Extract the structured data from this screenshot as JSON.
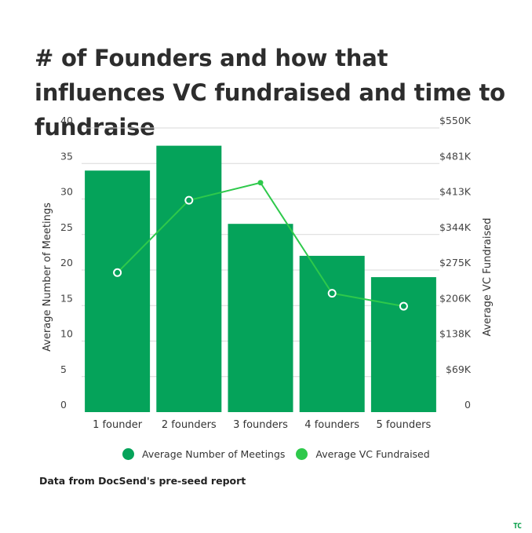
{
  "colors": {
    "bar": "#05a35a",
    "line": "#2ec94b",
    "grid": "#d9d9d9"
  },
  "chart_data": {
    "type": "bar",
    "title": "# of Founders and how that influences VC fundraised and time to fundraise",
    "categories": [
      "1 founder",
      "2 founders",
      "3 founders",
      "4 founders",
      "5 founders"
    ],
    "series": [
      {
        "name": "Average Number of Meetings",
        "type": "bar",
        "axis": "left",
        "values": [
          34,
          37.5,
          26.5,
          22,
          19
        ]
      },
      {
        "name": "Average VC Fundraised",
        "type": "line",
        "axis": "right",
        "values": [
          270,
          410,
          444,
          230,
          205
        ]
      }
    ],
    "ylabel_left": "Average Number of Meetings",
    "ylabel_right": "Average VC Fundraised",
    "ylim_left": [
      0,
      40
    ],
    "ylim_right": [
      0,
      550
    ],
    "yticks_left": [
      "0",
      "5",
      "10",
      "15",
      "20",
      "25",
      "30",
      "35",
      "40"
    ],
    "yticks_right": [
      "0",
      "$69K",
      "$138K",
      "$206K",
      "$275K",
      "$344K",
      "$413K",
      "$481K",
      "$550K"
    ],
    "grid": true,
    "legend_position": "bottom"
  },
  "source_note": "Data from DocSend's pre-seed report",
  "logo_text": "TC"
}
